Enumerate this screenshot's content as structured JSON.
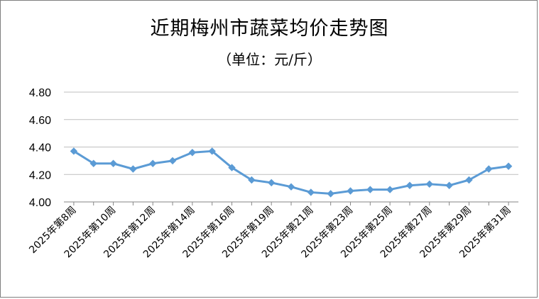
{
  "chart_data": {
    "type": "line",
    "title": "近期梅州市蔬菜均价走势图",
    "subtitle": "（单位：元/斤）",
    "xlabel": "",
    "ylabel": "",
    "ylim": [
      4.0,
      4.8
    ],
    "yticks": [
      "4.00",
      "4.20",
      "4.40",
      "4.60",
      "4.80"
    ],
    "grid": true,
    "legend": "none",
    "color": "#5B9BD5",
    "x": [
      "2025年第8周",
      "2025年第9周",
      "2025年第10周",
      "2025年第11周",
      "2025年第12周",
      "2025年第13周",
      "2025年第14周",
      "2025年第15周",
      "2025年第16周",
      "2025年第18周",
      "2025年第19周",
      "2025年第20周",
      "2025年第21周",
      "2025年第22周",
      "2025年第23周",
      "2025年第24周",
      "2025年第25周",
      "2025年第26周",
      "2025年第27周",
      "2025年第28周",
      "2025年第29周",
      "2025年第30周",
      "2025年第31周"
    ],
    "shown_tick_labels": [
      "2025年第8周",
      "2025年第10周",
      "2025年第12周",
      "2025年第14周",
      "2025年第16周",
      "2025年第19周",
      "2025年第21周",
      "2025年第23周",
      "2025年第25周",
      "2025年第27周",
      "2025年第29周",
      "2025年第31周"
    ],
    "series": [
      {
        "values": [
          4.37,
          4.28,
          4.28,
          4.24,
          4.28,
          4.3,
          4.36,
          4.37,
          4.25,
          4.16,
          4.14,
          4.11,
          4.07,
          4.06,
          4.08,
          4.09,
          4.09,
          4.12,
          4.13,
          4.12,
          4.16,
          4.24,
          4.26
        ]
      }
    ]
  }
}
